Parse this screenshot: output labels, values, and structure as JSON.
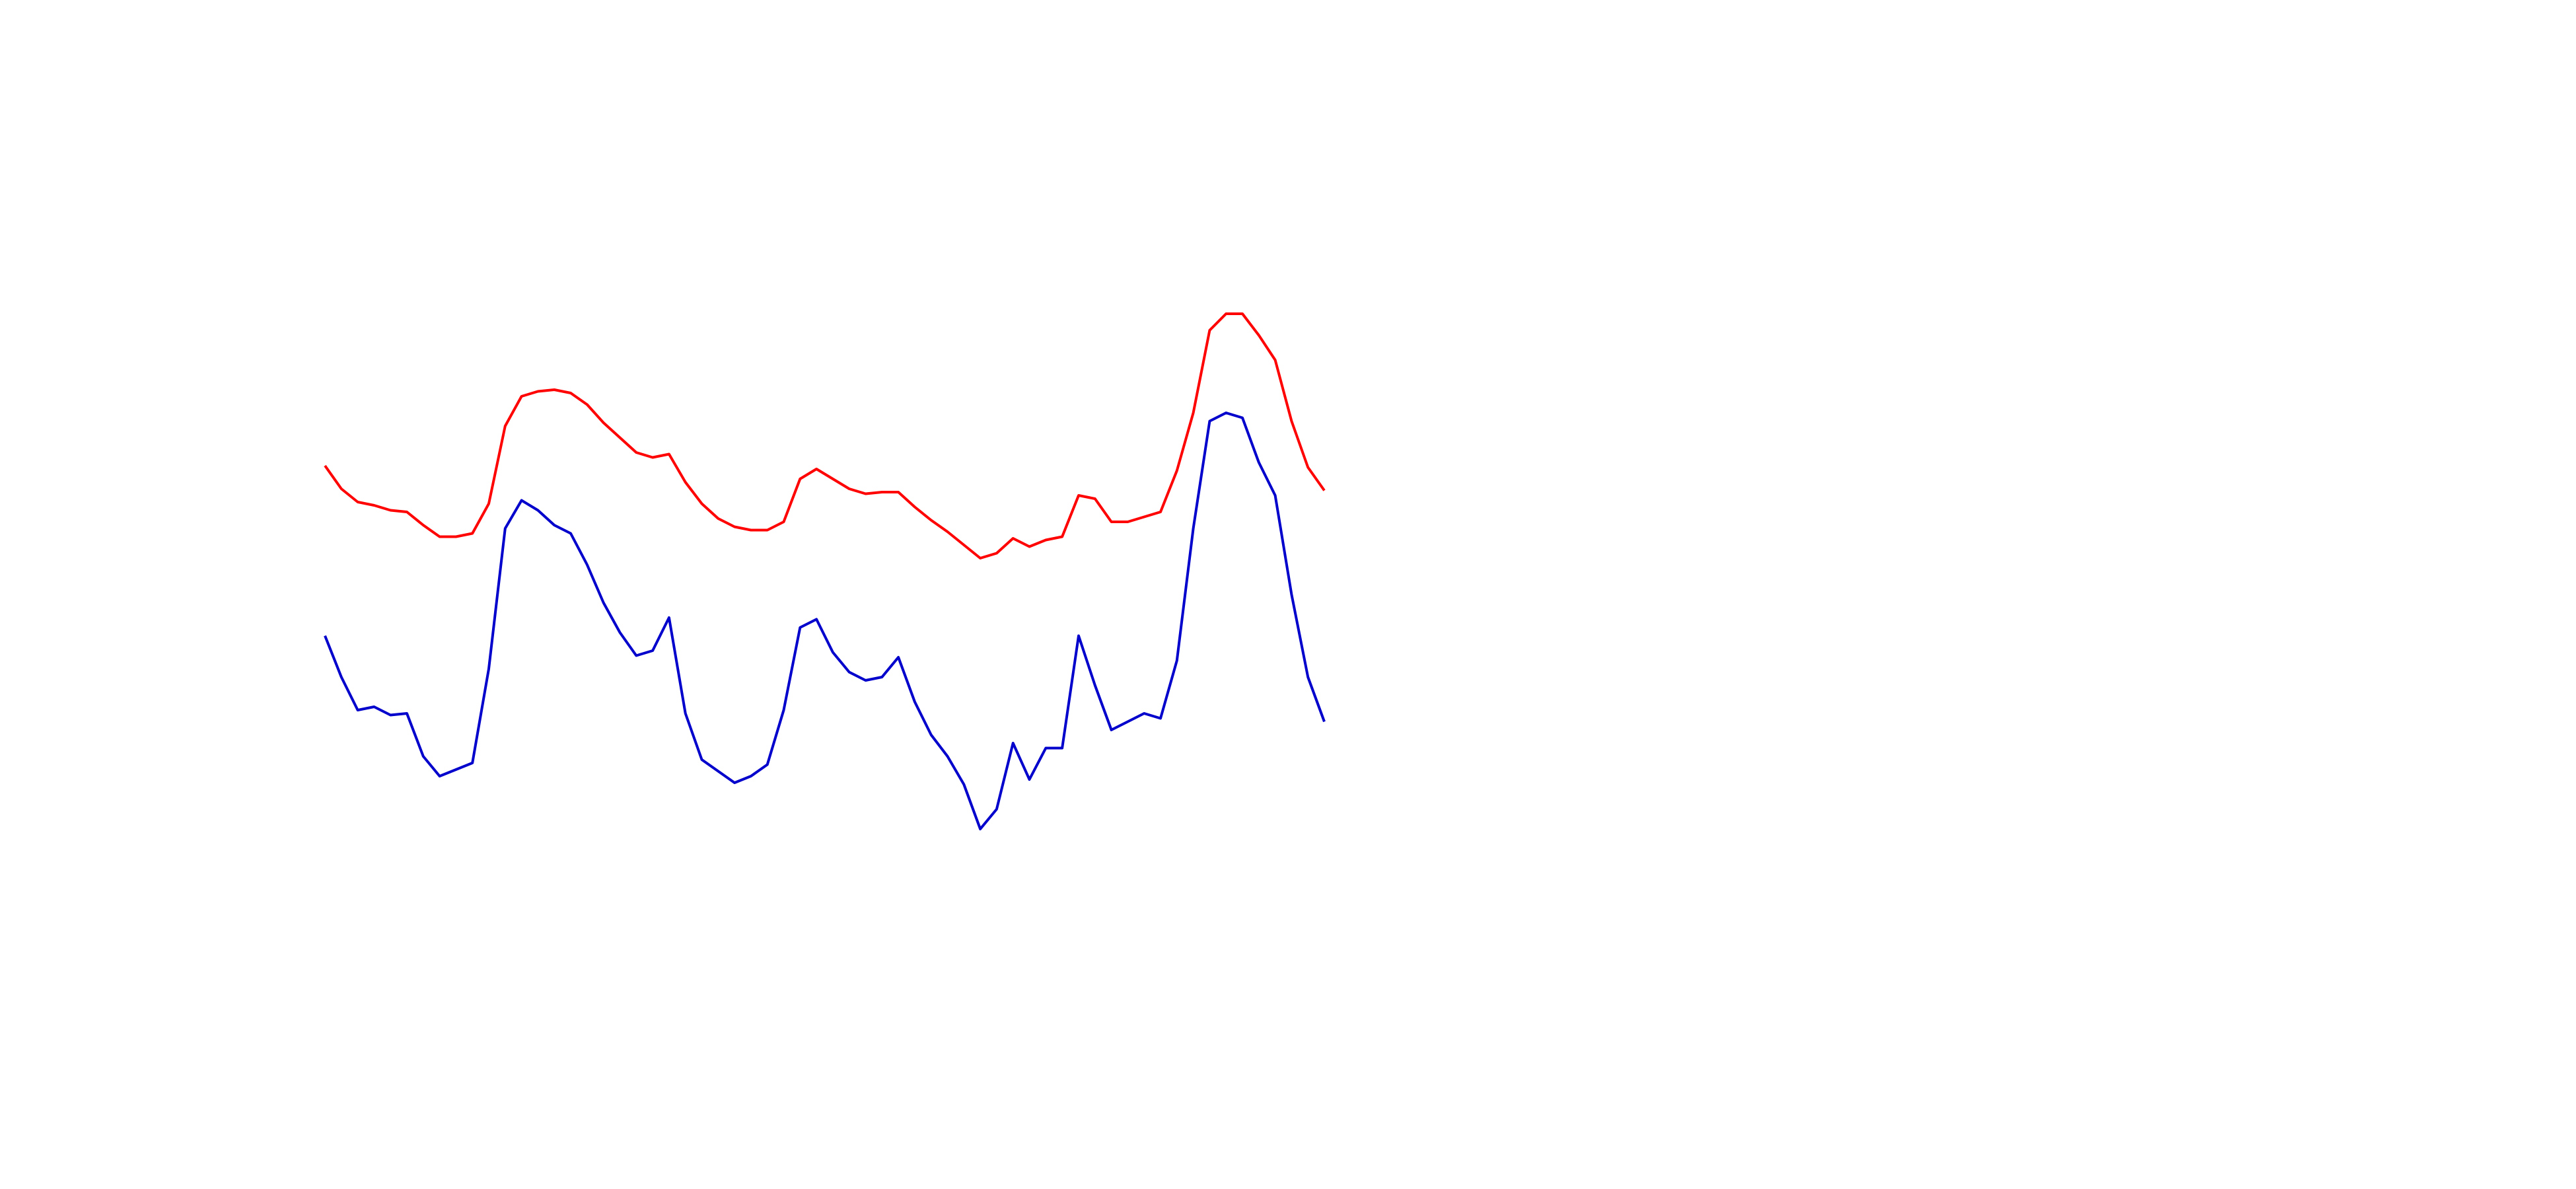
{
  "chart_data": {
    "type": "line",
    "ylim": [
      0,
      720
    ],
    "series": [
      {
        "color": "#ff0000",
        "values": [
          438,
          424,
          416,
          414,
          411,
          410,
          402,
          395,
          395,
          397,
          415,
          462,
          480,
          483,
          484,
          482,
          475,
          464,
          455,
          446,
          443,
          445,
          428,
          415,
          406,
          401,
          399,
          399,
          404,
          430,
          436,
          430,
          424,
          421,
          422,
          422,
          413,
          405,
          398,
          390,
          382,
          385,
          394,
          389,
          393,
          395,
          420,
          418,
          404,
          404,
          407,
          410,
          435,
          470,
          520,
          530,
          530,
          517,
          502,
          465,
          437,
          423
        ]
      },
      {
        "color": "#0000cc",
        "values": [
          335,
          310,
          290,
          292,
          287,
          288,
          262,
          250,
          254,
          258,
          315,
          400,
          417,
          411,
          402,
          397,
          378,
          355,
          337,
          323,
          326,
          346,
          288,
          260,
          253,
          246,
          250,
          257,
          290,
          340,
          345,
          325,
          313,
          308,
          310,
          322,
          295,
          275,
          262,
          245,
          218,
          230,
          270,
          248,
          267,
          267,
          335,
          305,
          278,
          283,
          288,
          285,
          320,
          400,
          465,
          470,
          467,
          440,
          420,
          360,
          310,
          283
        ]
      }
    ]
  }
}
